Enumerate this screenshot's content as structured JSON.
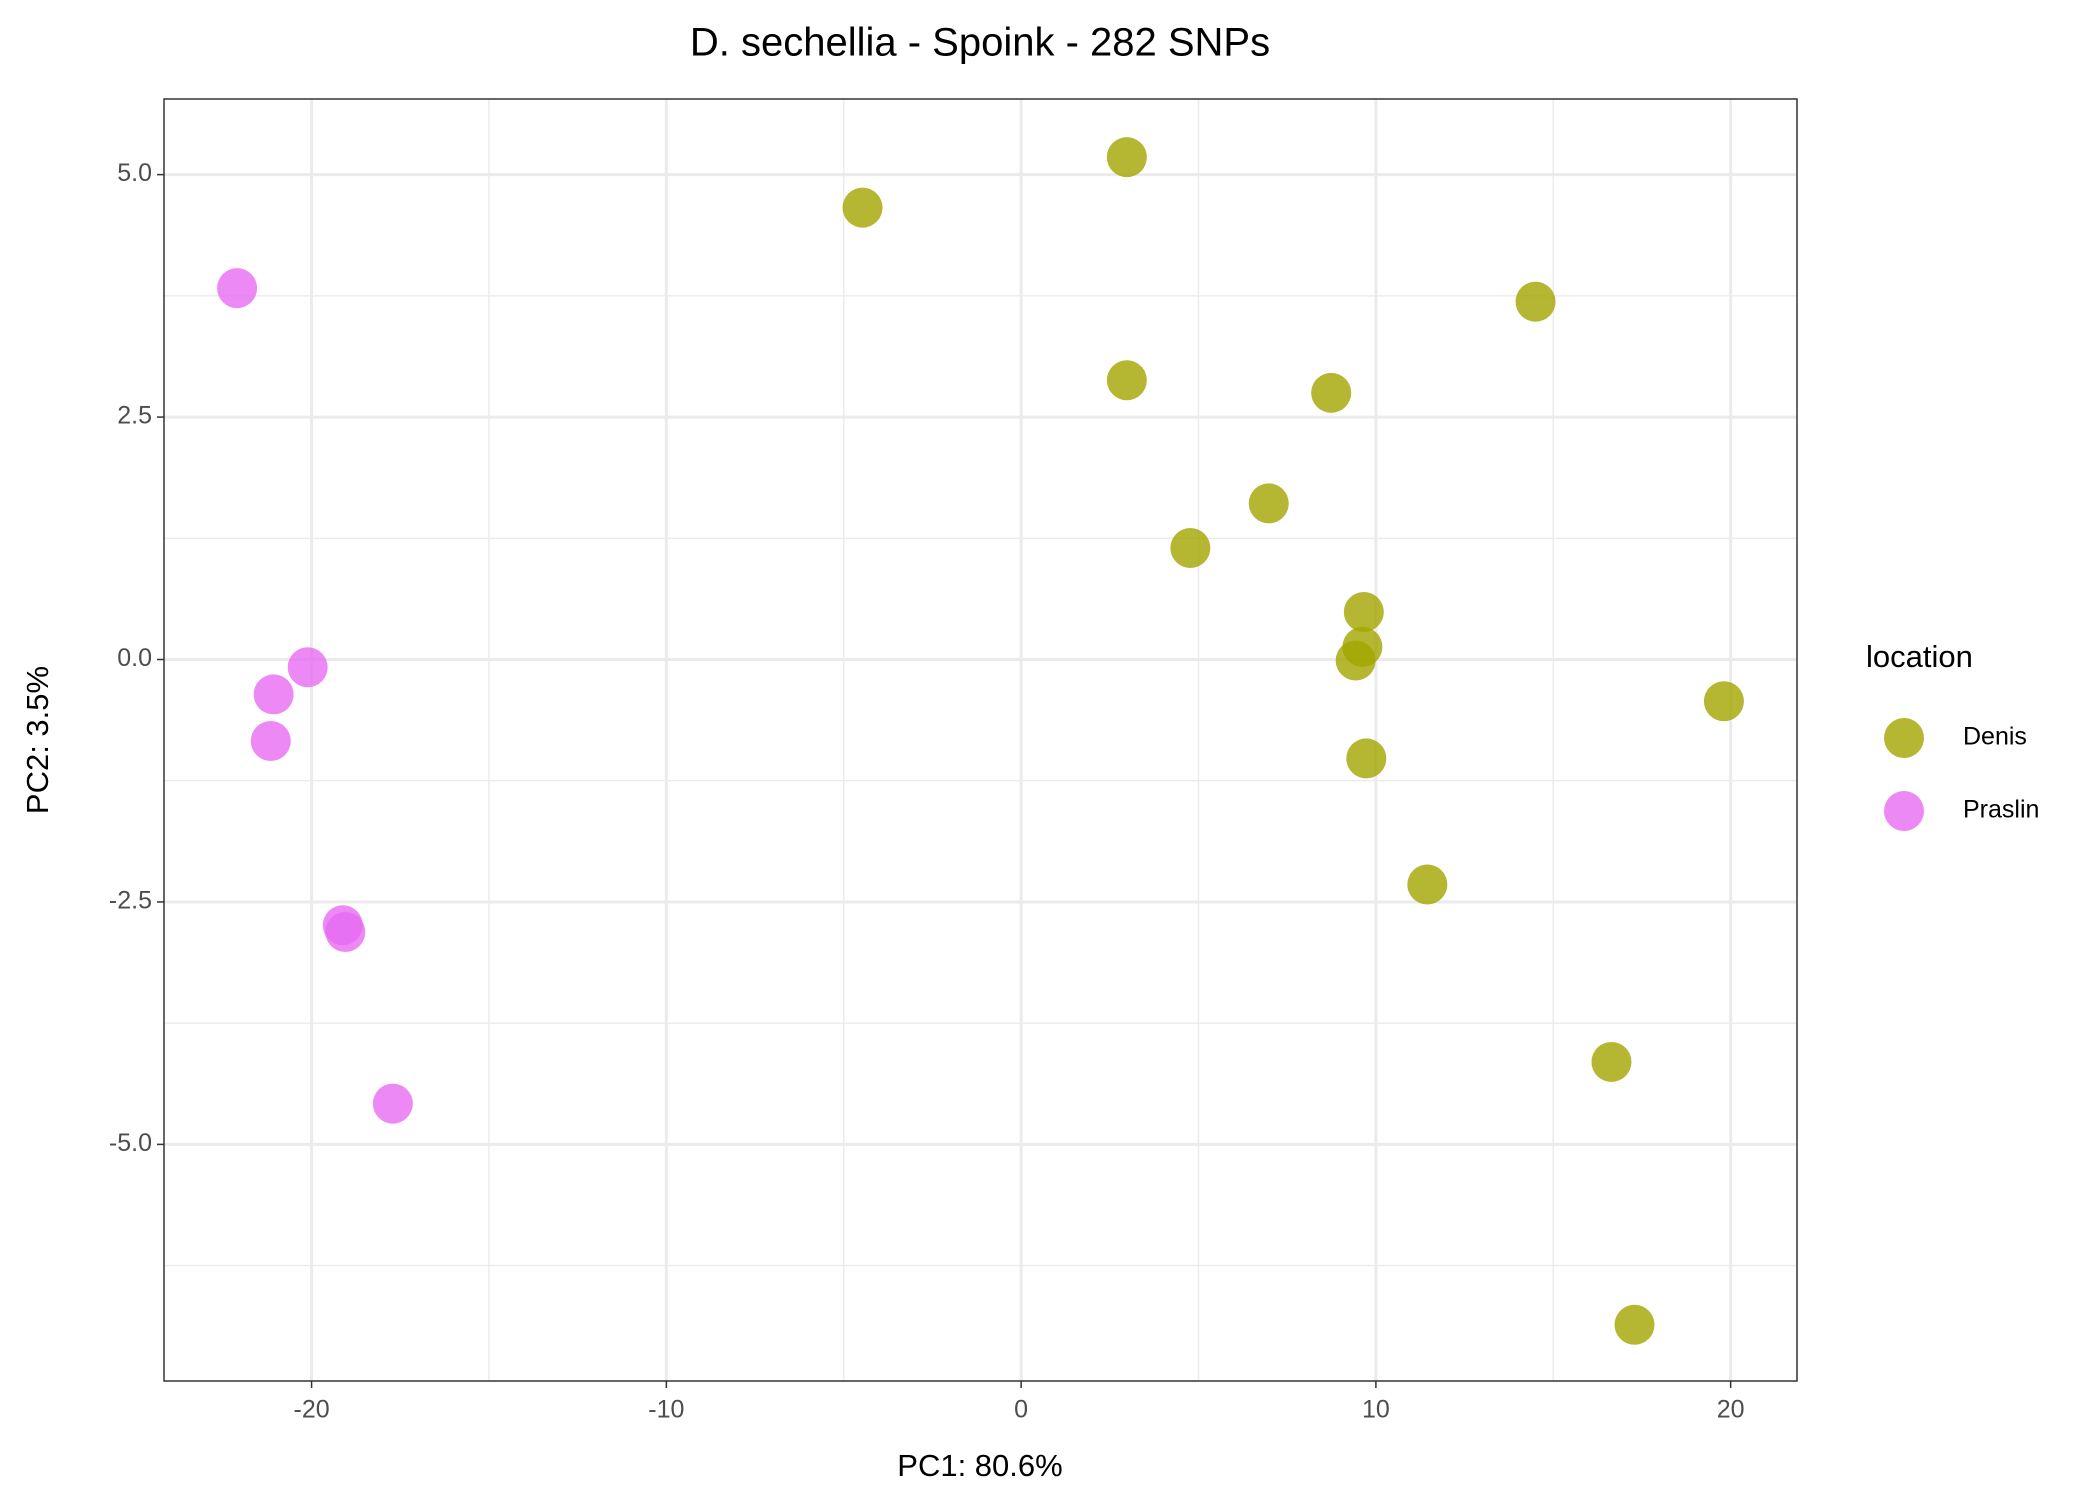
{
  "chart_data": {
    "type": "scatter",
    "title": "D. sechellia - Spoink - 282 SNPs",
    "x_label": "PC1: 80.6%",
    "y_label": "PC2: 3.5%",
    "legend_title": "location",
    "series": [
      {
        "name": "Denis",
        "color": "#a3a500",
        "x": [
          -4.47,
          2.98,
          2.98,
          8.74,
          14.5,
          6.98,
          4.77,
          9.66,
          9.62,
          9.43,
          9.73,
          19.81,
          11.45,
          16.64,
          17.29
        ],
        "values": [
          4.66,
          5.18,
          2.88,
          2.75,
          3.69,
          1.61,
          1.15,
          0.49,
          0.13,
          -0.01,
          -1.02,
          -0.43,
          -2.32,
          -4.15,
          -6.86
        ]
      },
      {
        "name": "Praslin",
        "color": "#e76bf3",
        "x": [
          -22.1,
          -20.11,
          -21.07,
          -21.15,
          -19.12,
          -19.05,
          -17.71
        ],
        "values": [
          3.83,
          -0.08,
          -0.36,
          -0.84,
          -2.74,
          -2.81,
          -4.58
        ]
      }
    ],
    "xlim": [
      -24.16,
      21.87
    ],
    "xticks": [
      -20,
      -10,
      0,
      10,
      20
    ],
    "ylim": [
      -7.44,
      5.78
    ],
    "yticks": [
      {
        "value": -5,
        "label": "-5.0"
      },
      {
        "value": -2.5,
        "label": "-2.5"
      },
      {
        "value": 0,
        "label": "0.0"
      },
      {
        "value": 2.5,
        "label": "2.5"
      },
      {
        "value": 5,
        "label": "5.0"
      }
    ],
    "grid": true,
    "minor_grid": true,
    "legend": "right",
    "point_alpha": 0.8
  }
}
